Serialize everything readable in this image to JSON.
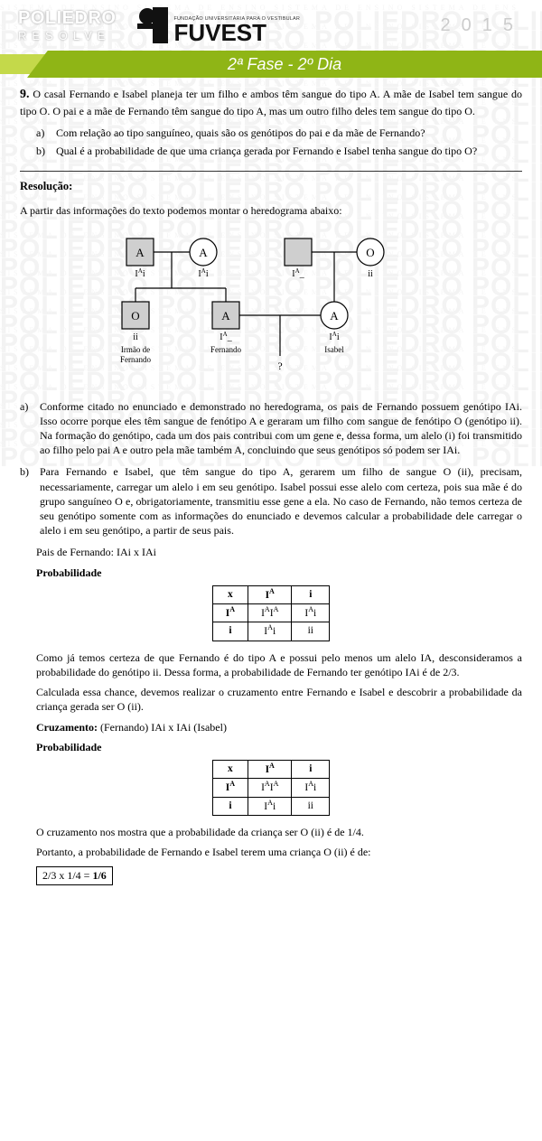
{
  "header": {
    "poliedro_top": "POLIEDRO",
    "poliedro_bottom": "RESOLVE",
    "fuvest_small": "FUNDAÇÃO UNIVERSITÁRIA PARA O VESTIBULAR",
    "fuvest_big": "FUVEST",
    "year": "2015",
    "banner": "2ª Fase - 2º Dia"
  },
  "question": {
    "number": "9.",
    "statement": "O casal Fernando e Isabel planeja ter um filho e ambos têm sangue do tipo A. A mãe de Isabel tem sangue do tipo O. O pai e a mãe de Fernando têm sangue do tipo A, mas um outro filho deles tem sangue do tipo O.",
    "a": "Com relação ao tipo sanguíneo, quais são os genótipos do pai e da mãe de Fernando?",
    "b": "Qual é a probabilidade de que uma criança gerada por Fernando e Isabel tenha sangue do tipo O?"
  },
  "resolution_title": "Resolução:",
  "intro": "A partir das informações do texto podemos montar o heredograma abaixo:",
  "pedigree": {
    "colors": {
      "stroke": "#000",
      "fill_shaded": "#cfcfcf",
      "fill_white": "#fff",
      "text": "#000"
    },
    "gen1": [
      {
        "shape": "square",
        "label": "A",
        "geno": "IAi",
        "shaded": true
      },
      {
        "shape": "circle",
        "label": "A",
        "geno": "IAi",
        "shaded": false
      },
      {
        "shape": "square",
        "label": "",
        "geno": "IA_",
        "shaded": true
      },
      {
        "shape": "circle",
        "label": "O",
        "geno": "ii",
        "shaded": false
      }
    ],
    "gen2": [
      {
        "shape": "square",
        "label": "O",
        "geno": "ii",
        "caption": "Irmão de Fernando",
        "shaded": true
      },
      {
        "shape": "square",
        "label": "A",
        "geno": "IA_",
        "caption": "Fernando",
        "shaded": true
      },
      {
        "shape": "circle",
        "label": "A",
        "geno": "IAi",
        "caption": "Isabel",
        "shaded": false
      }
    ],
    "child_label": "?"
  },
  "answer_a": "Conforme citado no enunciado e demonstrado no heredograma, os pais de Fernando possuem genótipo IAi. Isso ocorre porque eles têm sangue de fenótipo A e geraram um filho com sangue de fenótipo O (genótipo ii). Na formação do genótipo, cada um dos pais contribui com um gene e, dessa forma, um alelo (i) foi transmitido ao filho pelo pai A e outro pela mãe também A, concluindo que seus genótipos só podem ser IAi.",
  "answer_b": "Para Fernando e Isabel, que têm sangue do tipo A, gerarem um filho de sangue O (ii), precisam, necessariamente, carregar um alelo i em seu genótipo. Isabel possui esse alelo com certeza, pois sua mãe é do grupo sanguíneo O e, obrigatoriamente, transmitiu esse gene a ela. No caso de Fernando, não temos certeza de seu genótipo somente com as informações do enunciado e devemos calcular a probabilidade dele carregar o alelo i em seu genótipo, a partir de seus pais.",
  "cross_parents": "Pais de Fernando: IAi x IAi",
  "prob_title": "Probabilidade",
  "punnett": {
    "header": [
      "x",
      "IA",
      "i"
    ],
    "rows": [
      [
        "IA",
        "IAIA",
        "IAi"
      ],
      [
        "i",
        "IAi",
        "ii"
      ]
    ]
  },
  "para_after_p1": "Como já temos certeza de que Fernando é do tipo A e possui pelo menos um alelo IA, desconsideramos a probabilidade do genótipo ii. Dessa forma, a probabilidade de Fernando ter genótipo IAi é de 2/3.",
  "para_after_p1b": "Calculada essa chance, devemos realizar o cruzamento entre Fernando e Isabel e descobrir a probabilidade da criança gerada ser O (ii).",
  "cross2_label": "Cruzamento:",
  "cross2_text": " (Fernando) IAi x IAi (Isabel)",
  "para_after_p2a": "O cruzamento nos mostra que a probabilidade da criança ser O (ii) é de 1/4.",
  "para_after_p2b": "Portanto, a probabilidade de Fernando e Isabel terem uma criança O (ii) é de:",
  "final": "2/3 x 1/4 = 1/6",
  "watermark": {
    "big": "POLIEDRO POLIEDRO POLIEDRO POLIEDRO",
    "small": "SISTEMA DE ENSINO   SISTEMA DE ENSINO   SISTEMA DE ENSINO   SISTEMA DE ENS"
  }
}
